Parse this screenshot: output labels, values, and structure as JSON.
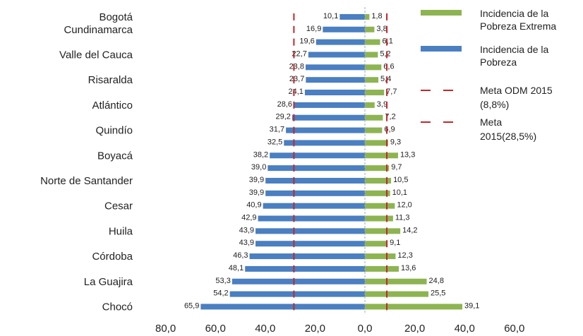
{
  "chart_data": {
    "type": "bar",
    "orientation": "diverging-horizontal",
    "rows": [
      {
        "label": "Bogotá",
        "pobreza": 10.1,
        "extrema": 1.8
      },
      {
        "label": "Cundinamarca",
        "pobreza": 16.9,
        "extrema": 3.8
      },
      {
        "label": "",
        "pobreza": 19.6,
        "extrema": 6.1
      },
      {
        "label": "Valle del Cauca",
        "pobreza": 22.7,
        "extrema": 5.2
      },
      {
        "label": "",
        "pobreza": 23.8,
        "extrema": 6.6
      },
      {
        "label": "Risaralda",
        "pobreza": 23.7,
        "extrema": 5.4
      },
      {
        "label": "",
        "pobreza": 24.1,
        "extrema": 7.7
      },
      {
        "label": "Atlántico",
        "pobreza": 28.6,
        "extrema": 3.9
      },
      {
        "label": "",
        "pobreza": 29.2,
        "extrema": 7.2
      },
      {
        "label": "Quindío",
        "pobreza": 31.7,
        "extrema": 6.9
      },
      {
        "label": "",
        "pobreza": 32.5,
        "extrema": 9.3
      },
      {
        "label": "Boyacá",
        "pobreza": 38.2,
        "extrema": 13.3
      },
      {
        "label": "",
        "pobreza": 39.0,
        "extrema": 9.7
      },
      {
        "label": "Norte de Santander",
        "pobreza": 39.9,
        "extrema": 10.5
      },
      {
        "label": "",
        "pobreza": 39.9,
        "extrema": 10.1
      },
      {
        "label": "Cesar",
        "pobreza": 40.9,
        "extrema": 12.0
      },
      {
        "label": "",
        "pobreza": 42.9,
        "extrema": 11.3
      },
      {
        "label": "Huila",
        "pobreza": 43.9,
        "extrema": 14.2
      },
      {
        "label": "",
        "pobreza": 43.9,
        "extrema": 9.1
      },
      {
        "label": "Córdoba",
        "pobreza": 46.3,
        "extrema": 12.3
      },
      {
        "label": "",
        "pobreza": 48.1,
        "extrema": 13.6
      },
      {
        "label": "La Guajira",
        "pobreza": 53.3,
        "extrema": 24.8
      },
      {
        "label": "",
        "pobreza": 54.2,
        "extrema": 25.5
      },
      {
        "label": "Chocó",
        "pobreza": 65.9,
        "extrema": 39.1
      }
    ],
    "series": [
      {
        "name": "Incidencia de la Pobreza Extrema",
        "key": "extrema",
        "color": "#8db451"
      },
      {
        "name": "Incidencia de la Pobreza",
        "key": "pobreza",
        "color": "#4a7fc1"
      }
    ],
    "reference_lines": [
      {
        "name": "Meta ODM 2015 (8,8%)",
        "value": 8.8,
        "color": "#c0292b"
      },
      {
        "name": "Meta 2015(28,5%)",
        "value": -28.5,
        "color": "#c0292b"
      }
    ],
    "xticks": [
      "80,0",
      "60,0",
      "40,0",
      "20,0",
      "0,0",
      "20,0",
      "40,0",
      "60,0"
    ],
    "xlim": [
      -80,
      60
    ],
    "grid": false,
    "legend_position": "right"
  }
}
